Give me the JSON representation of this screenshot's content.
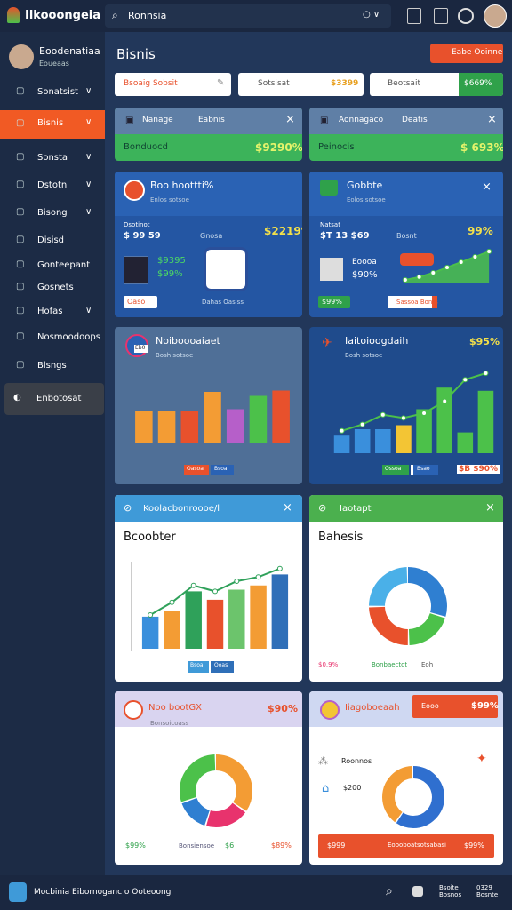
{
  "header": {
    "brand": "Ilkooongeia",
    "search": "Ronnsia"
  },
  "sidebar": {
    "user": "Eoodenatiaa",
    "role": "Eoueaas",
    "items": [
      "Sonatsist",
      "Bisnis",
      "Sonsta",
      "Dstotn",
      "Bisong",
      "Disisd",
      "Gonteepant",
      "Gosnets",
      "Hofas",
      "Nosmoodoops",
      "Blsngs"
    ],
    "button": "Enbotosat"
  },
  "main": {
    "title": "Bisnis",
    "action": "Eabe Ooinne",
    "filters": [
      {
        "label": "Bsoaig Sobsit"
      },
      {
        "label": "Sotsisat",
        "value": "$3399"
      },
      {
        "label": "Beotsait",
        "value": "$669%"
      }
    ]
  },
  "cards": [
    {
      "title": "Nanage",
      "tab": "Eabnis",
      "label": "Bonduocd",
      "value": "$9290%"
    },
    {
      "title": "Aonnagaco",
      "tab": "Deatis",
      "label": "Peinocis",
      "value": "$ 693%"
    },
    {
      "title": "Boo hoottti%",
      "sub": "Enlos sotsoe",
      "stat_label": "Dsotinot",
      "stat": "$ 99 59",
      "mid": "Gnosa",
      "value": "$2219%",
      "metric1": "$9395",
      "metric2": "$99%",
      "button": "Oaso",
      "note": "Dahas Oasiss"
    },
    {
      "title": "Gobbte",
      "sub": "Eolos sotsoe",
      "stat_label": "Natsat",
      "stat": "$T 13 $69",
      "mid": "Bosnt",
      "value": "99%",
      "metric1": "Eoooa",
      "metric2": "$90%",
      "button": "$99%",
      "tag": "Sassoa Bonts",
      "chart": {
        "ylim": [
          0,
          100
        ],
        "line": [
          10,
          18,
          30,
          45,
          60,
          75,
          90
        ],
        "color": "#4cc14a"
      }
    },
    {
      "title": "Noiboooaiaet",
      "sub": "Bosh sotsoe",
      "badge": "Eb0",
      "legend": [
        "Oasoa",
        "Bsoa"
      ],
      "chart": {
        "ylim": [
          0,
          100
        ],
        "values": [
          48,
          48,
          48,
          76,
          50,
          70,
          78
        ],
        "colors": [
          "#f39c34",
          "#f39c34",
          "#e8512c",
          "#f39c34",
          "#b65fc9",
          "#4cc14a",
          "#e8512c"
        ]
      }
    },
    {
      "title": "Iaitoioogdaih",
      "sub": "Bosh sotsoe",
      "value": "$95%",
      "legend": [
        "Ossoa",
        "Bsao"
      ],
      "tag": "$B $90%",
      "chart": {
        "ylim": [
          0,
          100
        ],
        "values": [
          22,
          30,
          30,
          35,
          55,
          82,
          26,
          78
        ],
        "colors": [
          "#3a8fdc",
          "#3a8fdc",
          "#3a8fdc",
          "#f3c534",
          "#4cc14a",
          "#4cc14a",
          "#4cc14a",
          "#4cc14a"
        ],
        "line": [
          28,
          36,
          48,
          44,
          50,
          65,
          92,
          100
        ],
        "line_color": "#4cc14a"
      }
    },
    {
      "title": "Koolacbonroooe/l",
      "heading": "Bcoobter",
      "legend": [
        "Bsoa",
        "Ooas"
      ],
      "chart": {
        "ylim": [
          0,
          100
        ],
        "values": [
          38,
          45,
          68,
          58,
          70,
          75,
          88
        ],
        "colors": [
          "#3a8fdc",
          "#f39c34",
          "#2fa15a",
          "#e8512c",
          "#6cc46c",
          "#f39c34",
          "#2f6fb8"
        ],
        "line": [
          40,
          55,
          75,
          68,
          80,
          85,
          95
        ],
        "line_color": "#2fa15a"
      }
    },
    {
      "title": "Iaotapt",
      "heading": "Bahesis",
      "legend": [
        "$0.9%",
        "Bonbaectot",
        "Eoh"
      ],
      "donut": {
        "values": [
          30,
          20,
          25,
          25
        ],
        "colors": [
          "#2f7fd1",
          "#4cc14a",
          "#e8512c",
          "#4ab0e8"
        ]
      }
    },
    {
      "title": "Noo bootGX",
      "sub": "Bonsoicoass",
      "value": "$90%",
      "legend": [
        "$99%",
        "Bonsiensoe",
        "$6",
        "$89%"
      ],
      "donut": {
        "values": [
          35,
          20,
          15,
          30
        ],
        "colors": [
          "#f39c34",
          "#e8336d",
          "#2f7fd1",
          "#4cc14a"
        ]
      }
    },
    {
      "title": "Iiagoboeaah",
      "badge": "Eooo",
      "value": "$99%",
      "items": [
        "Roonnos",
        "$200"
      ],
      "footer": [
        "$999",
        "Eoooboatsotsabasi",
        "$99%"
      ],
      "donut": {
        "values": [
          60,
          40
        ],
        "colors": [
          "#2f6fcf",
          "#f39c34"
        ]
      }
    }
  ],
  "footer": {
    "text": "Mocbinia Eibornoganc o Ooteoong",
    "stat1": "Bsoite Bosnos",
    "stat2": "0329 Bosnte"
  }
}
